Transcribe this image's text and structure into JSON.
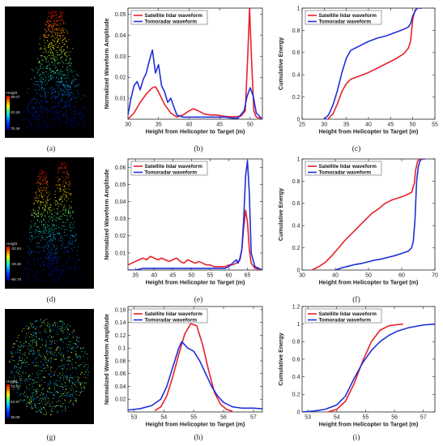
{
  "panel_labels": [
    "(a)",
    "(b)",
    "(c)",
    "(d)",
    "(e)",
    "(f)",
    "(g)",
    "(h)",
    "(i)"
  ],
  "point_clouds": [
    {
      "title": "Height",
      "ticks": [
        "39.07",
        "40.26",
        "70.46"
      ],
      "shape": "canopy"
    },
    {
      "title": "Height",
      "ticks": [
        "-32.94",
        "-49.36",
        "-65.79"
      ],
      "shape": "twin-crowns"
    },
    {
      "title": "Height",
      "ticks": [
        "73.64",
        "54.97",
        "36.09"
      ],
      "shape": "disk"
    }
  ],
  "colors": {
    "satellite": "#e8202a",
    "tomoradar": "#1f2fd8",
    "axis": "#222222"
  },
  "chart_data": [
    {
      "type": "line",
      "panel": "b",
      "xlabel": "Height from Helicopter to Target (m)",
      "ylabel": "Normalized Waveform Amplitude",
      "xlim": [
        30,
        52
      ],
      "ylim": [
        0,
        0.053
      ],
      "xticks": [
        30,
        35,
        40,
        45,
        50
      ],
      "yticks": [
        0.01,
        0.02,
        0.03,
        0.04,
        0.05
      ],
      "ytick_labels": [
        "0.01",
        "0.02",
        "0.03",
        "0.04",
        "0.05"
      ],
      "legend": "top-left",
      "series": [
        {
          "name": "Satellite lidar waveform",
          "color": "#e8202a",
          "x": [
            30,
            31,
            32,
            33,
            34,
            34.5,
            35,
            36,
            37,
            38,
            39,
            40,
            40.7,
            41.5,
            42.5,
            43.5,
            44.5,
            45.5,
            46.5,
            47.5,
            48.5,
            49.2,
            49.6,
            49.9,
            50.2,
            50.6,
            51,
            52
          ],
          "y": [
            0,
            0.003,
            0.008,
            0.012,
            0.015,
            0.0155,
            0.013,
            0.007,
            0.003,
            0.001,
            0.002,
            0.004,
            0.005,
            0.004,
            0.0025,
            0.002,
            0.002,
            0.0015,
            0.0012,
            0.0012,
            0.0015,
            0.004,
            0.03,
            0.053,
            0.03,
            0.004,
            0.001,
            0
          ]
        },
        {
          "name": "Tomoradar waveform",
          "color": "#1f2fd8",
          "x": [
            30,
            30.5,
            31,
            31.5,
            32,
            32.5,
            33,
            33.5,
            34,
            34.5,
            35,
            35.5,
            36,
            36.5,
            37,
            37.5,
            38,
            39,
            40,
            41,
            42,
            43,
            44,
            45,
            46,
            47,
            48,
            49,
            49.5,
            50,
            50.5,
            51,
            52
          ],
          "y": [
            0.002,
            0.01,
            0.016,
            0.018,
            0.014,
            0.019,
            0.022,
            0.028,
            0.033,
            0.022,
            0.026,
            0.016,
            0.013,
            0.008,
            0.01,
            0.006,
            0.002,
            0.001,
            0.001,
            0.001,
            0.001,
            0.001,
            0.001,
            0.001,
            0.001,
            0.0005,
            0.0005,
            0.004,
            0.011,
            0.015,
            0.011,
            0.003,
            0
          ]
        }
      ]
    },
    {
      "type": "line",
      "panel": "c",
      "xlabel": "Height from Helicopter to Target (m)",
      "ylabel": "Cumulative Energy",
      "xlim": [
        25,
        55
      ],
      "ylim": [
        0,
        1
      ],
      "xticks": [
        25,
        30,
        35,
        40,
        45,
        50,
        55
      ],
      "yticks": [
        0,
        0.2,
        0.4,
        0.6,
        0.8,
        1
      ],
      "ytick_labels": [
        "0",
        "0.2",
        "0.4",
        "0.6",
        "0.8",
        "1"
      ],
      "legend": "top-left",
      "series": [
        {
          "name": "Satellite lidar waveform",
          "color": "#e8202a",
          "x": [
            30.8,
            32,
            33,
            34,
            35,
            36,
            38,
            40,
            42,
            44,
            46,
            48,
            49,
            49.5,
            50,
            50.5,
            51,
            52
          ],
          "y": [
            0,
            0.05,
            0.14,
            0.25,
            0.32,
            0.36,
            0.39,
            0.42,
            0.46,
            0.5,
            0.54,
            0.59,
            0.64,
            0.7,
            0.9,
            0.98,
            1,
            1
          ]
        },
        {
          "name": "Tomoradar waveform",
          "color": "#1f2fd8",
          "x": [
            30,
            31,
            32,
            33,
            34,
            35,
            36,
            37,
            38,
            40,
            42,
            44,
            46,
            48,
            49,
            49.5,
            50,
            50.5,
            51,
            52
          ],
          "y": [
            0,
            0.04,
            0.13,
            0.26,
            0.42,
            0.55,
            0.62,
            0.64,
            0.66,
            0.7,
            0.73,
            0.75,
            0.78,
            0.81,
            0.83,
            0.86,
            0.93,
            0.97,
            1,
            1
          ]
        }
      ]
    },
    {
      "type": "line",
      "panel": "e",
      "xlabel": "Height from Helicopter to Target (m)",
      "ylabel": "Normalized Waveform Amplitude",
      "xlim": [
        33,
        69
      ],
      "ylim": [
        0,
        0.065
      ],
      "xticks": [
        35,
        40,
        45,
        50,
        55,
        60,
        65
      ],
      "yticks": [
        0.01,
        0.02,
        0.03,
        0.04,
        0.05,
        0.06
      ],
      "ytick_labels": [
        "0.01",
        "0.02",
        "0.03",
        "0.04",
        "0.05",
        "0.06"
      ],
      "legend": "top-left",
      "series": [
        {
          "name": "Satellite lidar waveform",
          "color": "#e8202a",
          "x": [
            33,
            34,
            35,
            36,
            37,
            38,
            39,
            40,
            41,
            42,
            43,
            44,
            45,
            46,
            47,
            48,
            49,
            50,
            51,
            52,
            53,
            54,
            55,
            56,
            57,
            58,
            59,
            60,
            61,
            62,
            63,
            63.5,
            64,
            64.5,
            65,
            65.5,
            66,
            67,
            69
          ],
          "y": [
            0.003,
            0.004,
            0.005,
            0.006,
            0.007,
            0.006,
            0.008,
            0.007,
            0.006,
            0.007,
            0.006,
            0.005,
            0.006,
            0.007,
            0.005,
            0.004,
            0.006,
            0.005,
            0.004,
            0.005,
            0.004,
            0.003,
            0.003,
            0.002,
            0.002,
            0.002,
            0.002,
            0.003,
            0.003,
            0.004,
            0.006,
            0.012,
            0.025,
            0.035,
            0.028,
            0.012,
            0.004,
            0.001,
            0
          ]
        },
        {
          "name": "Tomoradar waveform",
          "color": "#1f2fd8",
          "x": [
            33,
            35,
            37,
            39,
            41,
            43,
            45,
            47,
            49,
            51,
            53,
            55,
            57,
            59,
            60,
            61,
            62,
            62.5,
            63,
            63.5,
            64,
            64.5,
            65,
            65.5,
            66,
            67,
            69
          ],
          "y": [
            0,
            0,
            0.001,
            0.001,
            0.001,
            0.001,
            0.001,
            0.001,
            0.001,
            0.001,
            0.001,
            0.001,
            0.001,
            0.001,
            0.002,
            0.004,
            0.006,
            0.004,
            0.007,
            0.012,
            0.03,
            0.055,
            0.064,
            0.045,
            0.01,
            0.002,
            0
          ]
        }
      ]
    },
    {
      "type": "line",
      "panel": "f",
      "xlabel": "Height from Helicopter to Target (m)",
      "ylabel": "Cumulative Energy",
      "xlim": [
        30,
        70
      ],
      "ylim": [
        0,
        1
      ],
      "xticks": [
        30,
        40,
        50,
        60,
        70
      ],
      "yticks": [
        0,
        0.2,
        0.4,
        0.6,
        0.8,
        1
      ],
      "ytick_labels": [
        "0",
        "0.2",
        "0.4",
        "0.6",
        "0.8",
        "1"
      ],
      "legend": "top-left",
      "series": [
        {
          "name": "Satellite lidar waveform",
          "color": "#e8202a",
          "x": [
            33,
            35,
            37,
            39,
            41,
            43,
            45,
            47,
            49,
            51,
            53,
            55,
            57,
            59,
            61,
            63,
            63.8,
            64.2,
            64.8,
            65.5,
            67
          ],
          "y": [
            0,
            0.03,
            0.07,
            0.13,
            0.2,
            0.27,
            0.33,
            0.39,
            0.45,
            0.51,
            0.55,
            0.6,
            0.63,
            0.65,
            0.67,
            0.7,
            0.78,
            0.9,
            0.98,
            1,
            1
          ]
        },
        {
          "name": "Tomoradar waveform",
          "color": "#1f2fd8",
          "x": [
            40,
            42,
            44,
            46,
            48,
            50,
            52,
            54,
            56,
            58,
            60,
            62,
            63,
            63.5,
            64,
            64.5,
            65,
            65.5,
            66,
            67
          ],
          "y": [
            0,
            0.02,
            0.035,
            0.05,
            0.06,
            0.075,
            0.09,
            0.1,
            0.115,
            0.13,
            0.15,
            0.17,
            0.2,
            0.26,
            0.45,
            0.8,
            0.93,
            0.98,
            1,
            1
          ]
        }
      ]
    },
    {
      "type": "line",
      "panel": "h",
      "xlabel": "Height from Helicopter to Target (m)",
      "ylabel": "Normalized Waveform Amplitude",
      "xlim": [
        52.8,
        57.3
      ],
      "ylim": [
        0,
        0.165
      ],
      "xticks": [
        53,
        54,
        55,
        56,
        57
      ],
      "yticks": [
        0.02,
        0.04,
        0.06,
        0.08,
        0.1,
        0.12,
        0.14,
        0.16
      ],
      "ytick_labels": [
        "0.02",
        "0.04",
        "0.06",
        "0.08",
        "0.1",
        "0.12",
        "0.14",
        "0.16"
      ],
      "legend": "top-left",
      "series": [
        {
          "name": "Satellite lidar waveform",
          "color": "#e8202a",
          "x": [
            53.7,
            53.9,
            54.1,
            54.3,
            54.5,
            54.7,
            54.9,
            55.1,
            55.3,
            55.5,
            55.7,
            55.9,
            56.1,
            56.3
          ],
          "y": [
            0.002,
            0.008,
            0.025,
            0.055,
            0.09,
            0.122,
            0.138,
            0.135,
            0.105,
            0.065,
            0.03,
            0.012,
            0.004,
            0.001
          ]
        },
        {
          "name": "Tomoradar waveform",
          "color": "#1f2fd8",
          "x": [
            52.8,
            53.2,
            53.6,
            53.9,
            54.1,
            54.3,
            54.5,
            54.6,
            54.8,
            55.0,
            55.2,
            55.4,
            55.6,
            55.8,
            56.0,
            56.3,
            56.6,
            57.0,
            57.3
          ],
          "y": [
            0.003,
            0.005,
            0.01,
            0.02,
            0.04,
            0.07,
            0.1,
            0.11,
            0.1,
            0.095,
            0.08,
            0.06,
            0.04,
            0.025,
            0.015,
            0.008,
            0.006,
            0.006,
            0.005
          ]
        }
      ]
    },
    {
      "type": "line",
      "panel": "i",
      "xlabel": "Height from Helicopter to Target (m)",
      "ylabel": "Cumulative Energy",
      "xlim": [
        52.8,
        57.4
      ],
      "ylim": [
        0,
        1.2
      ],
      "xticks": [
        53,
        54,
        55,
        56,
        57
      ],
      "yticks": [
        0,
        0.2,
        0.4,
        0.6,
        0.8,
        1,
        1.2
      ],
      "ytick_labels": [
        "0",
        "0.2",
        "0.4",
        "0.6",
        "0.8",
        "1",
        "1.2"
      ],
      "legend": "top-left",
      "series": [
        {
          "name": "Satellite lidar waveform",
          "color": "#e8202a",
          "x": [
            53.7,
            54.0,
            54.3,
            54.6,
            54.9,
            55.2,
            55.5,
            55.8,
            56.0,
            56.3
          ],
          "y": [
            0,
            0.03,
            0.12,
            0.32,
            0.58,
            0.8,
            0.93,
            0.98,
            0.99,
            1
          ]
        },
        {
          "name": "Tomoradar waveform",
          "color": "#1f2fd8",
          "x": [
            52.8,
            53.2,
            53.6,
            54.0,
            54.3,
            54.6,
            54.9,
            55.2,
            55.5,
            55.8,
            56.1,
            56.5,
            57.0,
            57.4
          ],
          "y": [
            0,
            0.01,
            0.03,
            0.08,
            0.18,
            0.38,
            0.56,
            0.7,
            0.8,
            0.87,
            0.92,
            0.96,
            0.99,
            1
          ]
        }
      ]
    }
  ]
}
